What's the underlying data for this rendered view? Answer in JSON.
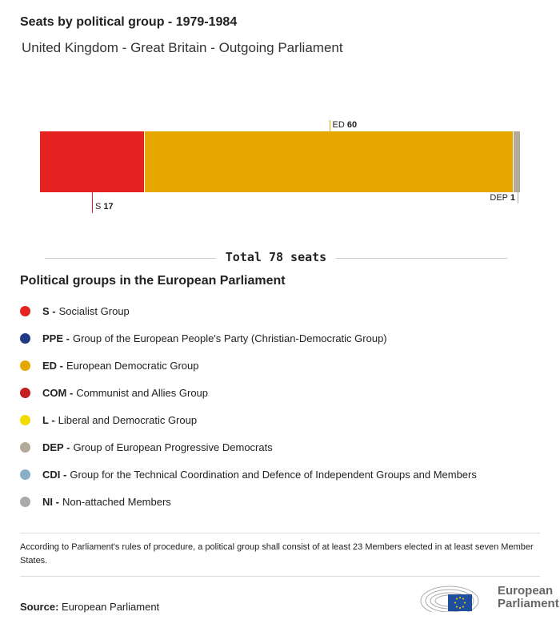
{
  "header": {
    "title": "Seats by political group - 1979-1984",
    "subtitle": "United Kingdom - Great Britain - Outgoing Parliament"
  },
  "chart_data": {
    "type": "bar",
    "orientation": "horizontal-stacked",
    "categories": [
      "S",
      "ED",
      "DEP"
    ],
    "values": [
      17,
      60,
      1
    ],
    "colors": [
      "#e52421",
      "#e6a800",
      "#b3aa9c"
    ],
    "labels": [
      {
        "group": "S",
        "value": "17"
      },
      {
        "group": "ED",
        "value": "60"
      },
      {
        "group": "DEP",
        "value": "1"
      }
    ],
    "total": 78
  },
  "total_label": "Total 78 seats",
  "legend": {
    "title": "Political groups in the European Parliament",
    "items": [
      {
        "abbr": "S -",
        "name": "Socialist Group",
        "color": "#e52421"
      },
      {
        "abbr": "PPE -",
        "name": "Group of the European People's Party (Christian-Democratic Group)",
        "color": "#1f3a82"
      },
      {
        "abbr": "ED -",
        "name": "European Democratic Group",
        "color": "#e6a800"
      },
      {
        "abbr": "COM -",
        "name": "Communist and Allies Group",
        "color": "#c41e1e"
      },
      {
        "abbr": "L -",
        "name": "Liberal and Democratic Group",
        "color": "#f0dc00"
      },
      {
        "abbr": "DEP -",
        "name": "Group of European Progressive Democrats",
        "color": "#b3aa9c"
      },
      {
        "abbr": "CDI -",
        "name": "Group for the Technical Coordination and Defence of Independent Groups and Members",
        "color": "#88aec8"
      },
      {
        "abbr": "NI -",
        "name": "Non-attached Members",
        "color": "#aaaaaa"
      }
    ]
  },
  "note": "According to Parliament's rules of procedure, a political group shall consist of at least 23 Members elected in at least seven Member States.",
  "source": {
    "label": "Source:",
    "value": "European Parliament"
  },
  "logo": {
    "text_line1": "European",
    "text_line2": "Parliament"
  }
}
